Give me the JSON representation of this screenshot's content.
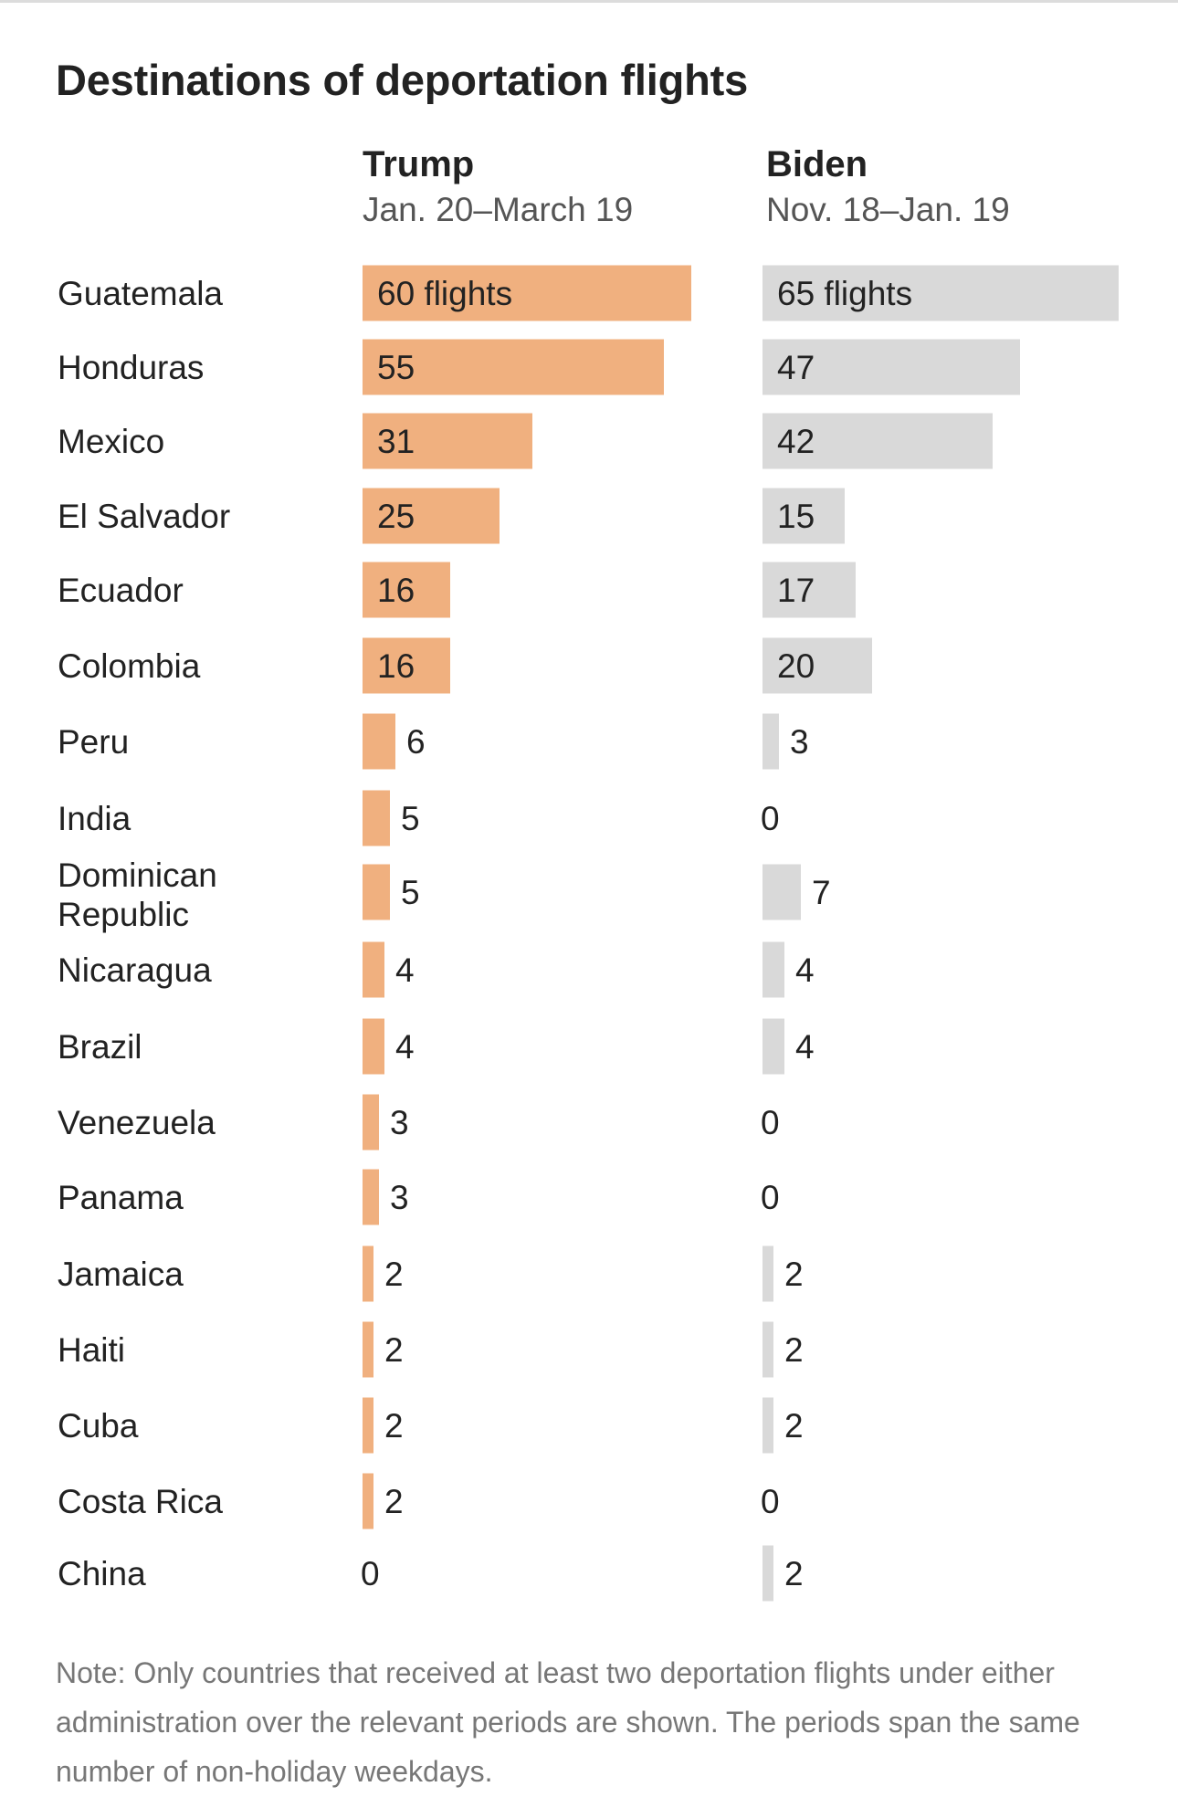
{
  "title": "Destinations of deportation flights",
  "note": "Note: Only countries that received at least two deportation flights under either administration over the relevant periods are shown. The periods span the same number of non-holiday weekdays.",
  "colors": {
    "trump": "#f0b07f",
    "biden": "#d9d9d9"
  },
  "chart_data": {
    "type": "bar",
    "orientation": "horizontal",
    "categories": [
      "Guatemala",
      "Honduras",
      "Mexico",
      "El Salvador",
      "Ecuador",
      "Colombia",
      "Peru",
      "India",
      "Dominican Republic",
      "Nicaragua",
      "Brazil",
      "Venezuela",
      "Panama",
      "Jamaica",
      "Haiti",
      "Cuba",
      "Costa Rica",
      "China"
    ],
    "series": [
      {
        "name": "Trump",
        "period": "Jan. 20–March 19",
        "values": [
          60,
          55,
          31,
          25,
          16,
          16,
          6,
          5,
          5,
          4,
          4,
          3,
          3,
          2,
          2,
          2,
          2,
          0
        ],
        "first_label": "60 flights"
      },
      {
        "name": "Biden",
        "period": "Nov. 18–Jan. 19",
        "values": [
          65,
          47,
          42,
          15,
          17,
          20,
          3,
          0,
          7,
          4,
          4,
          0,
          0,
          2,
          2,
          2,
          0,
          2
        ],
        "first_label": "65 flights"
      }
    ]
  }
}
